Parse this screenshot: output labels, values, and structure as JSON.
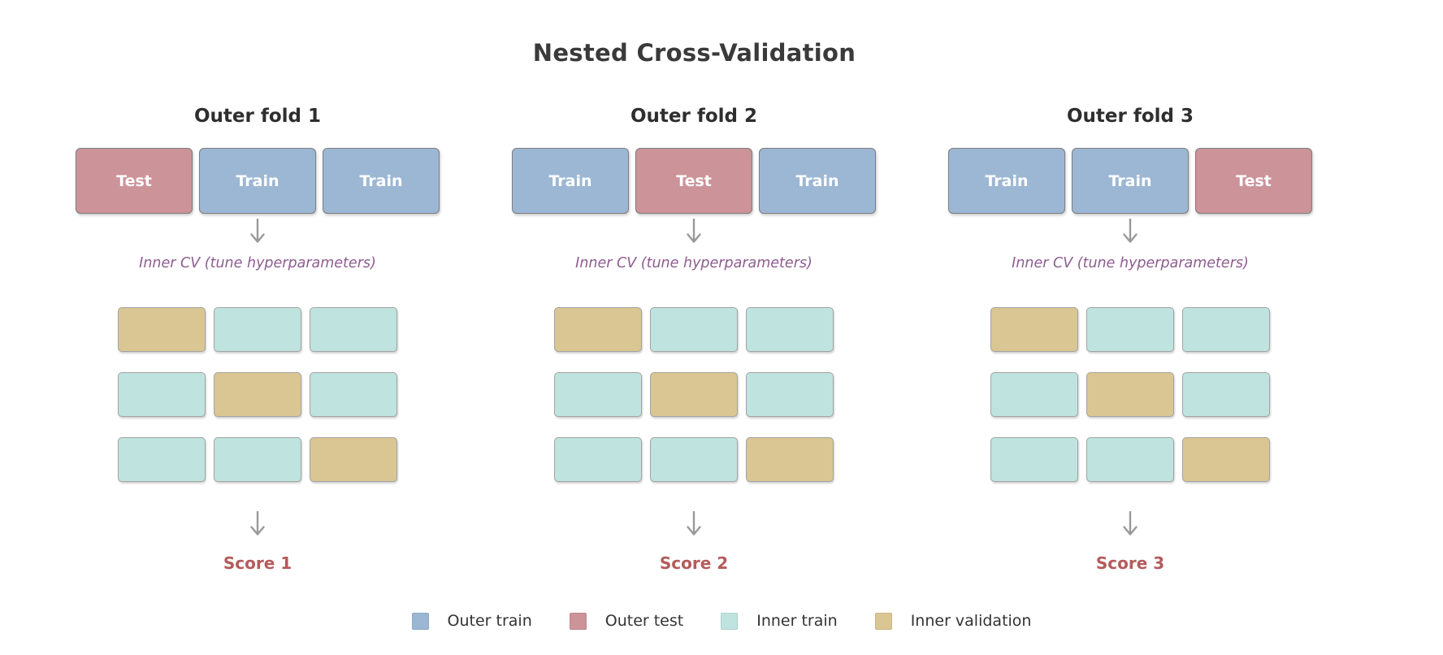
{
  "title": "Nested Cross-Validation",
  "colors": {
    "outer_train": "#9cb7d4",
    "outer_test": "#cc9399",
    "inner_train": "#bfe3df",
    "inner_validation": "#d9c693",
    "title_text": "#3a3a3a",
    "fold_title_text": "#2e2e2e",
    "inner_cv_text": "#8e5c90",
    "score_text": "#b45b5b",
    "arrow": "#999999",
    "legend_text": "#333333",
    "box_label_text": "#ffffff",
    "outer_box_border": "#7d7d7d",
    "inner_box_border": "#a3a3a3"
  },
  "folds": [
    {
      "label": "Outer fold 1",
      "outer_boxes": [
        {
          "label": "Test",
          "type": "outer_test"
        },
        {
          "label": "Train",
          "type": "outer_train"
        },
        {
          "label": "Train",
          "type": "outer_train"
        }
      ],
      "inner_cv_label": "Inner CV (tune hyperparameters)",
      "inner_grid": [
        [
          "inner_validation",
          "inner_train",
          "inner_train"
        ],
        [
          "inner_train",
          "inner_validation",
          "inner_train"
        ],
        [
          "inner_train",
          "inner_train",
          "inner_validation"
        ]
      ],
      "score_label": "Score 1"
    },
    {
      "label": "Outer fold 2",
      "outer_boxes": [
        {
          "label": "Train",
          "type": "outer_train"
        },
        {
          "label": "Test",
          "type": "outer_test"
        },
        {
          "label": "Train",
          "type": "outer_train"
        }
      ],
      "inner_cv_label": "Inner CV (tune hyperparameters)",
      "inner_grid": [
        [
          "inner_validation",
          "inner_train",
          "inner_train"
        ],
        [
          "inner_train",
          "inner_validation",
          "inner_train"
        ],
        [
          "inner_train",
          "inner_train",
          "inner_validation"
        ]
      ],
      "score_label": "Score 2"
    },
    {
      "label": "Outer fold 3",
      "outer_boxes": [
        {
          "label": "Train",
          "type": "outer_train"
        },
        {
          "label": "Train",
          "type": "outer_train"
        },
        {
          "label": "Test",
          "type": "outer_test"
        }
      ],
      "inner_cv_label": "Inner CV (tune hyperparameters)",
      "inner_grid": [
        [
          "inner_validation",
          "inner_train",
          "inner_train"
        ],
        [
          "inner_train",
          "inner_validation",
          "inner_train"
        ],
        [
          "inner_train",
          "inner_train",
          "inner_validation"
        ]
      ],
      "score_label": "Score 3"
    }
  ],
  "legend": [
    {
      "label": "Outer train",
      "type": "outer_train"
    },
    {
      "label": "Outer test",
      "type": "outer_test"
    },
    {
      "label": "Inner train",
      "type": "inner_train"
    },
    {
      "label": "Inner validation",
      "type": "inner_validation"
    }
  ]
}
